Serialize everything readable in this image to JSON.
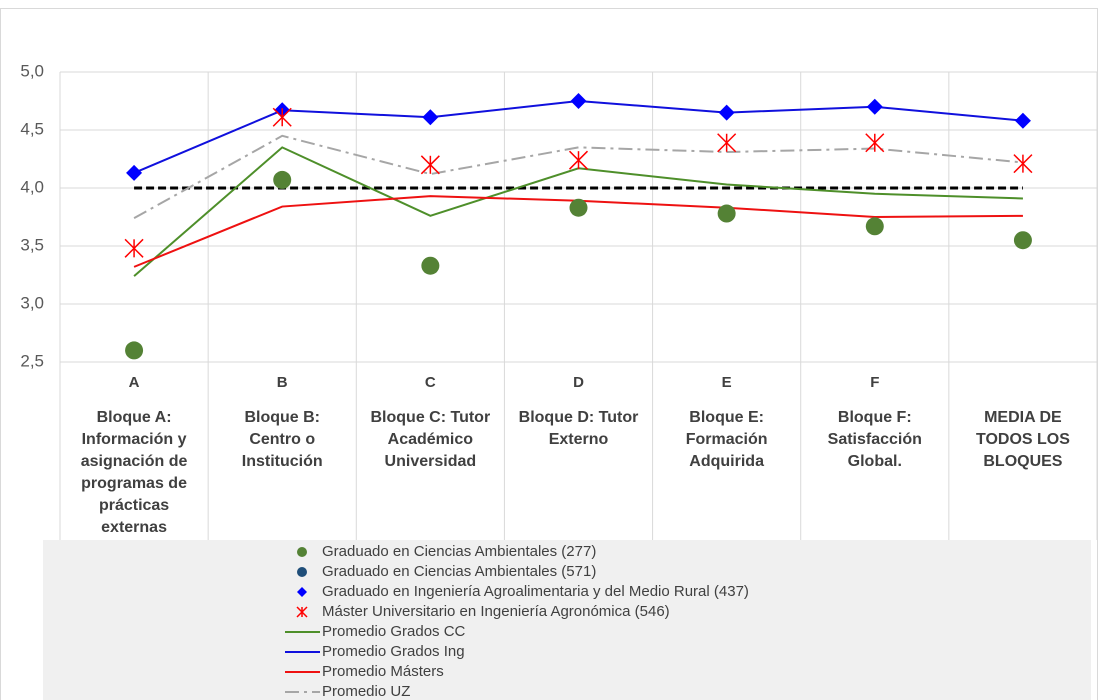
{
  "chart_data": {
    "type": "line",
    "ylim": [
      2.5,
      5.0
    ],
    "yticks": [
      {
        "value": 2.5,
        "label": "2,5"
      },
      {
        "value": 3.0,
        "label": "3,0"
      },
      {
        "value": 3.5,
        "label": "3,5"
      },
      {
        "value": 4.0,
        "label": "4,0"
      },
      {
        "value": 4.5,
        "label": "4,5"
      },
      {
        "value": 5.0,
        "label": "5,0"
      }
    ],
    "grid": true,
    "categories": [
      "A",
      "B",
      "C",
      "D",
      "E",
      "F",
      null
    ],
    "category_descriptions": [
      [
        "Bloque A:",
        "Información y",
        "asignación de",
        "programas de",
        "prácticas",
        "externas"
      ],
      [
        "Bloque B:",
        "Centro o",
        "Institución"
      ],
      [
        "Bloque C: Tutor",
        "Académico",
        "Universidad"
      ],
      [
        "Bloque D: Tutor",
        "Externo"
      ],
      [
        "Bloque E:",
        "Formación",
        "Adquirida"
      ],
      [
        "Bloque F:",
        "Satisfacción",
        "Global."
      ],
      [
        "MEDIA DE",
        "TODOS LOS",
        "BLOQUES"
      ]
    ],
    "reference_line": 4.0,
    "series": [
      {
        "name": "Graduado en Ciencias Ambientales (277)",
        "kind": "dot",
        "color": "#548235",
        "values": [
          2.6,
          4.07,
          3.33,
          3.83,
          3.78,
          3.67,
          3.55
        ]
      },
      {
        "name": "Graduado en Ciencias Ambientales (571)",
        "kind": "dot",
        "color": "#1f4e79",
        "values": [
          null,
          null,
          null,
          null,
          null,
          null,
          null
        ]
      },
      {
        "name": "Graduado en Ingeniería Agroalimentaria y del Medio Rural (437)",
        "kind": "diamond",
        "color": "#0000ff",
        "values": [
          4.13,
          4.67,
          4.61,
          4.75,
          4.65,
          4.7,
          4.58
        ]
      },
      {
        "name": "Máster Universitario en Ingeniería Agronómica (546)",
        "kind": "star",
        "color": "#ff0000",
        "values": [
          3.48,
          4.61,
          4.2,
          4.24,
          4.39,
          4.39,
          4.21
        ]
      },
      {
        "name": "Promedio Grados CC",
        "kind": "line",
        "color": "#4e8f2a",
        "values": [
          3.24,
          4.35,
          3.76,
          4.17,
          4.03,
          3.95,
          3.91
        ]
      },
      {
        "name": "Promedio Grados Ing",
        "kind": "line",
        "color": "#1010dd",
        "values": [
          4.13,
          4.67,
          4.61,
          4.75,
          4.65,
          4.7,
          4.58
        ]
      },
      {
        "name": "Promedio Másters",
        "kind": "line",
        "color": "#ee1111",
        "values": [
          3.32,
          3.84,
          3.93,
          3.89,
          3.83,
          3.75,
          3.76
        ]
      },
      {
        "name": "Promedio UZ",
        "kind": "dashdot",
        "color": "#a6a6a6",
        "values": [
          3.74,
          4.45,
          4.12,
          4.35,
          4.31,
          4.34,
          4.22
        ]
      }
    ]
  }
}
